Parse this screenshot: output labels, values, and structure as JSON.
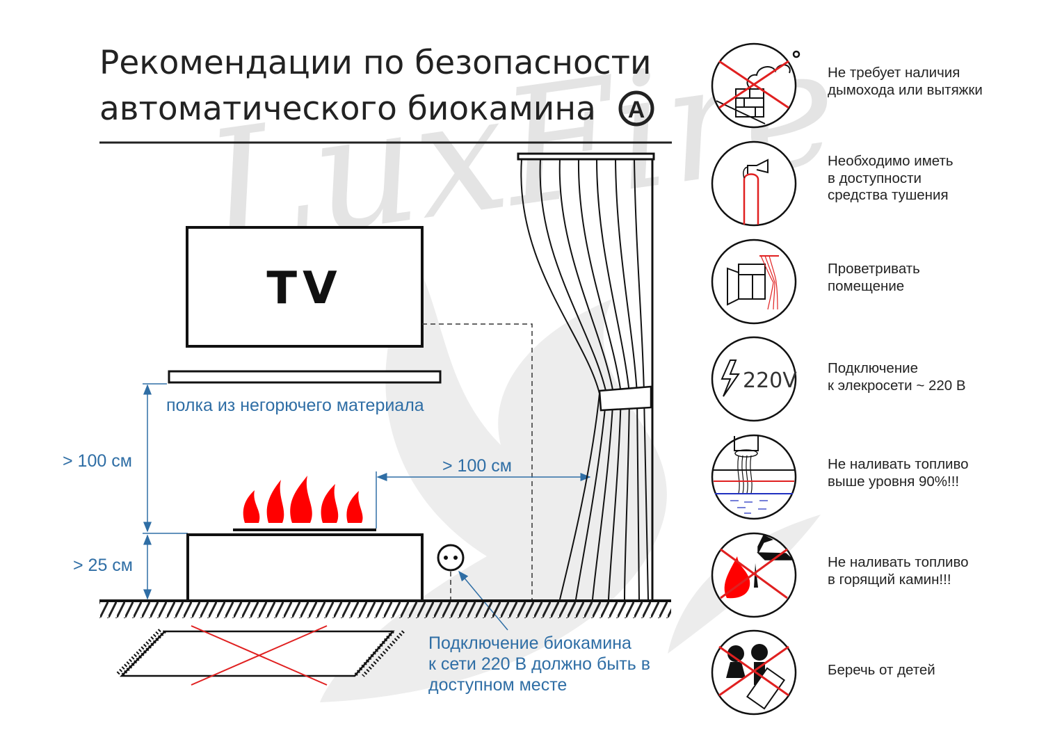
{
  "watermark": "LuxFire",
  "title": {
    "line1": "Рекомендации по безопасности",
    "line2": "автоматического биокамина",
    "badge": "A"
  },
  "diagram": {
    "tv_label": "TV",
    "shelf_label": "полка из негорючего материала",
    "height_above_label": "> 100 см",
    "height_below_label": "> 25 см",
    "distance_curtain_label": "> 100 см",
    "outlet_note": [
      "Подключение биокамина",
      "к сети 220 В должно быть в",
      "доступном месте"
    ],
    "colors": {
      "dimension": "#2f6ea5",
      "flame": "#ff0000",
      "cross": "#e02020"
    }
  },
  "rules": [
    {
      "icon": "no-chimney-icon",
      "lines": [
        "Не требует наличия",
        "дымохода или вытяжки"
      ]
    },
    {
      "icon": "fire-extinguisher-icon",
      "lines": [
        "Необходимо иметь",
        "в доступности",
        "средства тушения"
      ]
    },
    {
      "icon": "open-window-icon",
      "lines": [
        "Проветривать",
        "помещение"
      ]
    },
    {
      "icon": "voltage-220v-icon",
      "icon_text": "220V",
      "lines": [
        "Подключение",
        "к элекросети ~ 220 В"
      ]
    },
    {
      "icon": "fuel-level-icon",
      "lines": [
        "Не наливать топливо",
        "выше уровня 90%!!!"
      ]
    },
    {
      "icon": "no-pour-into-fire-icon",
      "lines": [
        "Не наливать топливо",
        "в горящий камин!!!"
      ]
    },
    {
      "icon": "keep-from-children-icon",
      "lines": [
        "Беречь от детей"
      ]
    }
  ]
}
